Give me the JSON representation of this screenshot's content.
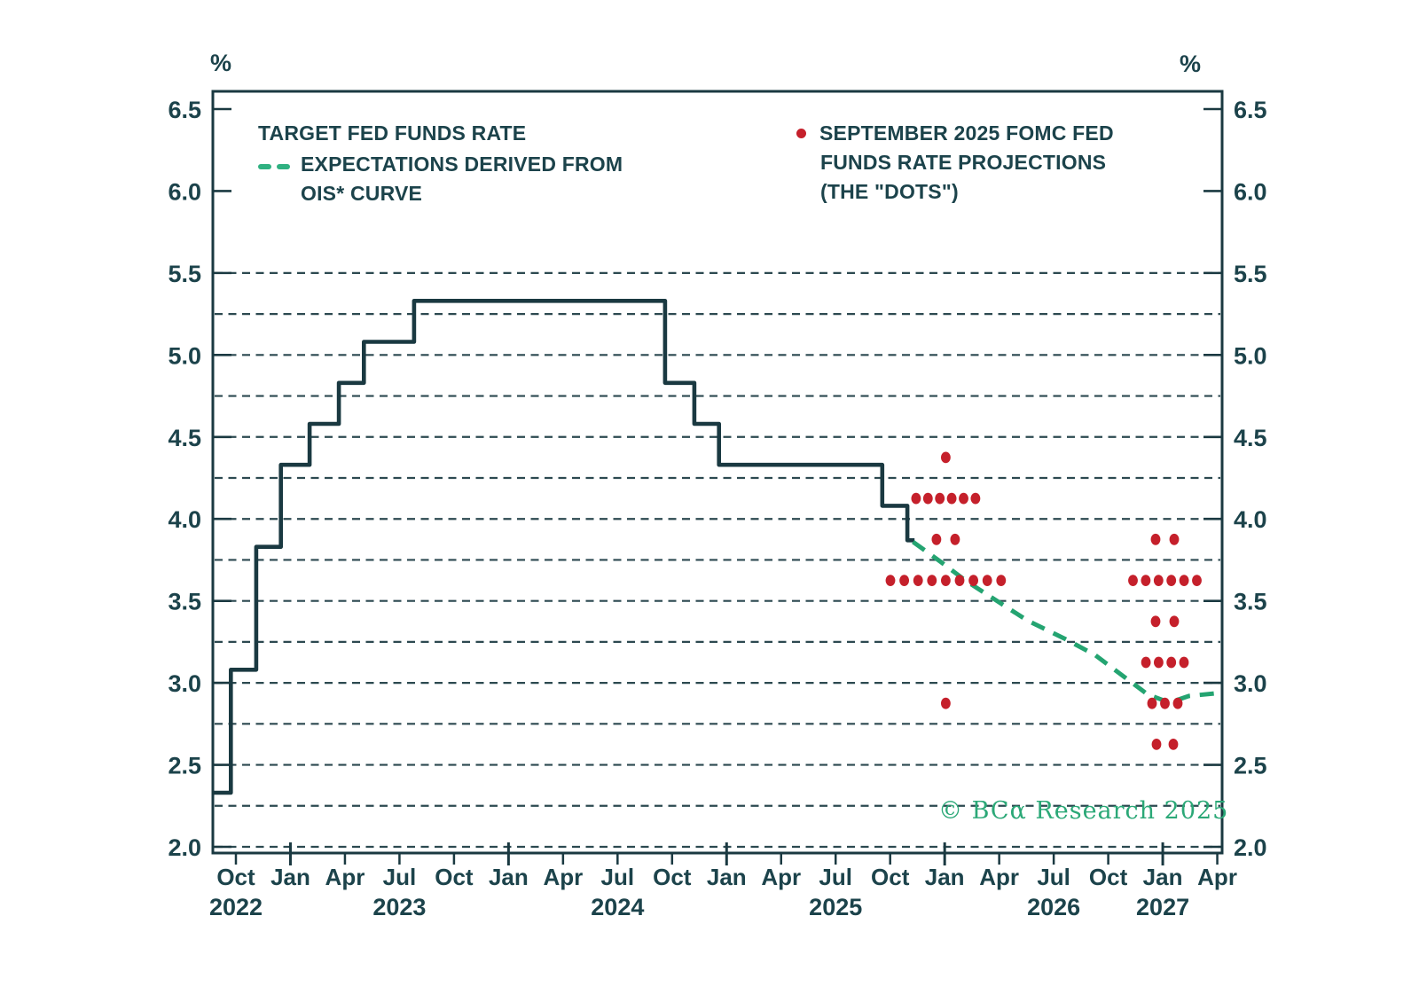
{
  "unit_label_left": "%",
  "unit_label_right": "%",
  "legend": {
    "target": {
      "label": "TARGET FED FUNDS RATE"
    },
    "ois": {
      "line1": "EXPECTATIONS DERIVED FROM",
      "line2": "OIS* CURVE"
    },
    "dots": {
      "line1": "SEPTEMBER 2025 FOMC FED",
      "line2": "FUNDS RATE PROJECTIONS",
      "line3": "(THE \"DOTS\")"
    }
  },
  "watermark": "© BCα Research 2025",
  "colors": {
    "dark_teal_line": "#1a3941",
    "text": "#1c434b",
    "gridline": "#2c4950",
    "ois_green": "#24a471",
    "dot_red": "#c5202b",
    "watermark_green": "#2ba877"
  },
  "chart_data": {
    "type": "line",
    "title": "",
    "ylabel": "%",
    "ylim": [
      1.96,
      6.61
    ],
    "xlim_decimal_years": [
      2022.644,
      2027.271
    ],
    "grid": "dashed horizontal",
    "legend_position": "inside-top",
    "y_axis": {
      "tick_labels": [
        "6.5",
        "6.0",
        "5.5",
        "5.0",
        "4.5",
        "4.0",
        "3.5",
        "3.0",
        "2.5",
        "2.0"
      ],
      "gridline_min": 2.0,
      "gridline_max": 5.5,
      "gridline_step": 0.25,
      "labels_on_both_sides": true
    },
    "x_axis": {
      "ticks": [
        {
          "label": "Oct",
          "t": 2022.75,
          "year": "2022"
        },
        {
          "label": "Jan",
          "t": 2023.0
        },
        {
          "label": "Apr",
          "t": 2023.25
        },
        {
          "label": "Jul",
          "t": 2023.5,
          "year": "2023"
        },
        {
          "label": "Oct",
          "t": 2023.75
        },
        {
          "label": "Jan",
          "t": 2024.0
        },
        {
          "label": "Apr",
          "t": 2024.25
        },
        {
          "label": "Jul",
          "t": 2024.5,
          "year": "2024"
        },
        {
          "label": "Oct",
          "t": 2024.75
        },
        {
          "label": "Jan",
          "t": 2025.0
        },
        {
          "label": "Apr",
          "t": 2025.25
        },
        {
          "label": "Jul",
          "t": 2025.5,
          "year": "2025"
        },
        {
          "label": "Oct",
          "t": 2025.75
        },
        {
          "label": "Jan",
          "t": 2026.0
        },
        {
          "label": "Apr",
          "t": 2026.25
        },
        {
          "label": "Jul",
          "t": 2026.5,
          "year": "2026"
        },
        {
          "label": "Oct",
          "t": 2026.75
        },
        {
          "label": "Jan",
          "t": 2027.0,
          "year": "2027"
        },
        {
          "label": "Apr",
          "t": 2027.25
        }
      ]
    },
    "series": [
      {
        "name": "TARGET FED FUNDS RATE",
        "type": "step",
        "color": "#1a3941",
        "points": [
          [
            2022.644,
            2.33
          ],
          [
            2022.727,
            3.08
          ],
          [
            2022.843,
            3.83
          ],
          [
            2022.956,
            4.33
          ],
          [
            2023.088,
            4.58
          ],
          [
            2023.222,
            4.83
          ],
          [
            2023.337,
            5.08
          ],
          [
            2023.567,
            5.33
          ],
          [
            2024.718,
            4.83
          ],
          [
            2024.852,
            4.58
          ],
          [
            2024.965,
            4.33
          ],
          [
            2025.714,
            4.08
          ],
          [
            2025.829,
            3.87
          ]
        ],
        "end_t": 2025.862
      },
      {
        "name": "EXPECTATIONS DERIVED FROM OIS* CURVE",
        "type": "line-dashed",
        "color": "#24a471",
        "points": [
          [
            2025.855,
            3.86
          ],
          [
            2025.98,
            3.74
          ],
          [
            2026.1,
            3.62
          ],
          [
            2026.24,
            3.5
          ],
          [
            2026.38,
            3.38
          ],
          [
            2026.55,
            3.27
          ],
          [
            2026.69,
            3.17
          ],
          [
            2026.83,
            3.03
          ],
          [
            2026.93,
            2.93
          ],
          [
            2027.03,
            2.88
          ],
          [
            2027.12,
            2.92
          ],
          [
            2027.27,
            2.94
          ]
        ]
      },
      {
        "name": "SEPTEMBER 2025 FOMC FED FUNDS RATE PROJECTIONS (THE \"DOTS\")",
        "type": "dots",
        "color": "#c5202b",
        "clusters": [
          {
            "projection_year": "2025",
            "center_t": 2026.005,
            "rows": [
              {
                "rate": 4.375,
                "count": 1,
                "dx": 15
              },
              {
                "rate": 4.125,
                "count": 6,
                "dx": 13.4
              },
              {
                "rate": 3.875,
                "count": 2,
                "dx": 21
              },
              {
                "rate": 3.625,
                "count": 9,
                "dx": 15.6
              },
              {
                "rate": 2.875,
                "count": 1,
                "dx": 15
              }
            ]
          },
          {
            "projection_year": "2026",
            "center_t": 2027.01,
            "rows": [
              {
                "rate": 3.875,
                "count": 2,
                "dx": 21
              },
              {
                "rate": 3.625,
                "count": 6,
                "dx": 14.4
              },
              {
                "rate": 3.375,
                "count": 2,
                "dx": 21
              },
              {
                "rate": 3.125,
                "count": 4,
                "dx": 14.3
              },
              {
                "rate": 2.875,
                "count": 3,
                "dx": 14.5
              },
              {
                "rate": 2.625,
                "count": 2,
                "dx": 19
              }
            ]
          }
        ]
      }
    ]
  }
}
